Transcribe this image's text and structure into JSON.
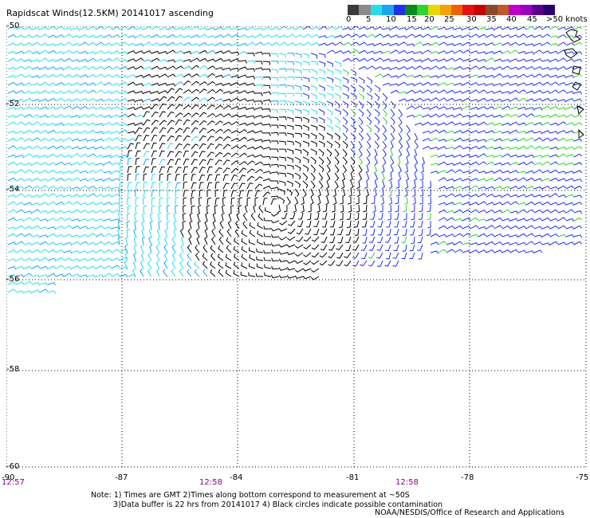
{
  "title": "Rapidscat Winds(12.5KM) 20141017 ascending",
  "colorbar": {
    "labels": [
      "0",
      "5",
      "10",
      "15",
      "20",
      "25",
      "30",
      "35",
      "40",
      "45",
      ">50 knots"
    ],
    "colors": [
      "#3b3b3b",
      "#8a8a8a",
      "#27dde8",
      "#19a6f0",
      "#2030e8",
      "#0a8a18",
      "#2ed42e",
      "#e8d800",
      "#f5a000",
      "#f06000",
      "#e81010",
      "#c80000",
      "#8b4a2a",
      "#c05a28",
      "#c000c8",
      "#9a00c0",
      "#5a0090",
      "#2a006a"
    ]
  },
  "map": {
    "lat_labels": [
      "-50",
      "-52",
      "-54",
      "-56",
      "-58",
      "-60"
    ],
    "lon_labels": [
      "-90",
      "-87",
      "-84",
      "-81",
      "-78",
      "-75"
    ],
    "times": [
      "12:57",
      "12:58",
      "12:58"
    ]
  },
  "notes": {
    "line1": "Note: 1) Times are GMT 2)Times along bottom correspond to measurement at ~50S",
    "line2": "3)Data buffer is 22 hrs from 20141017 4) Black circles indicate possible contamination"
  },
  "credit": "NOAA/NESDIS/Office of Research and Applications"
}
